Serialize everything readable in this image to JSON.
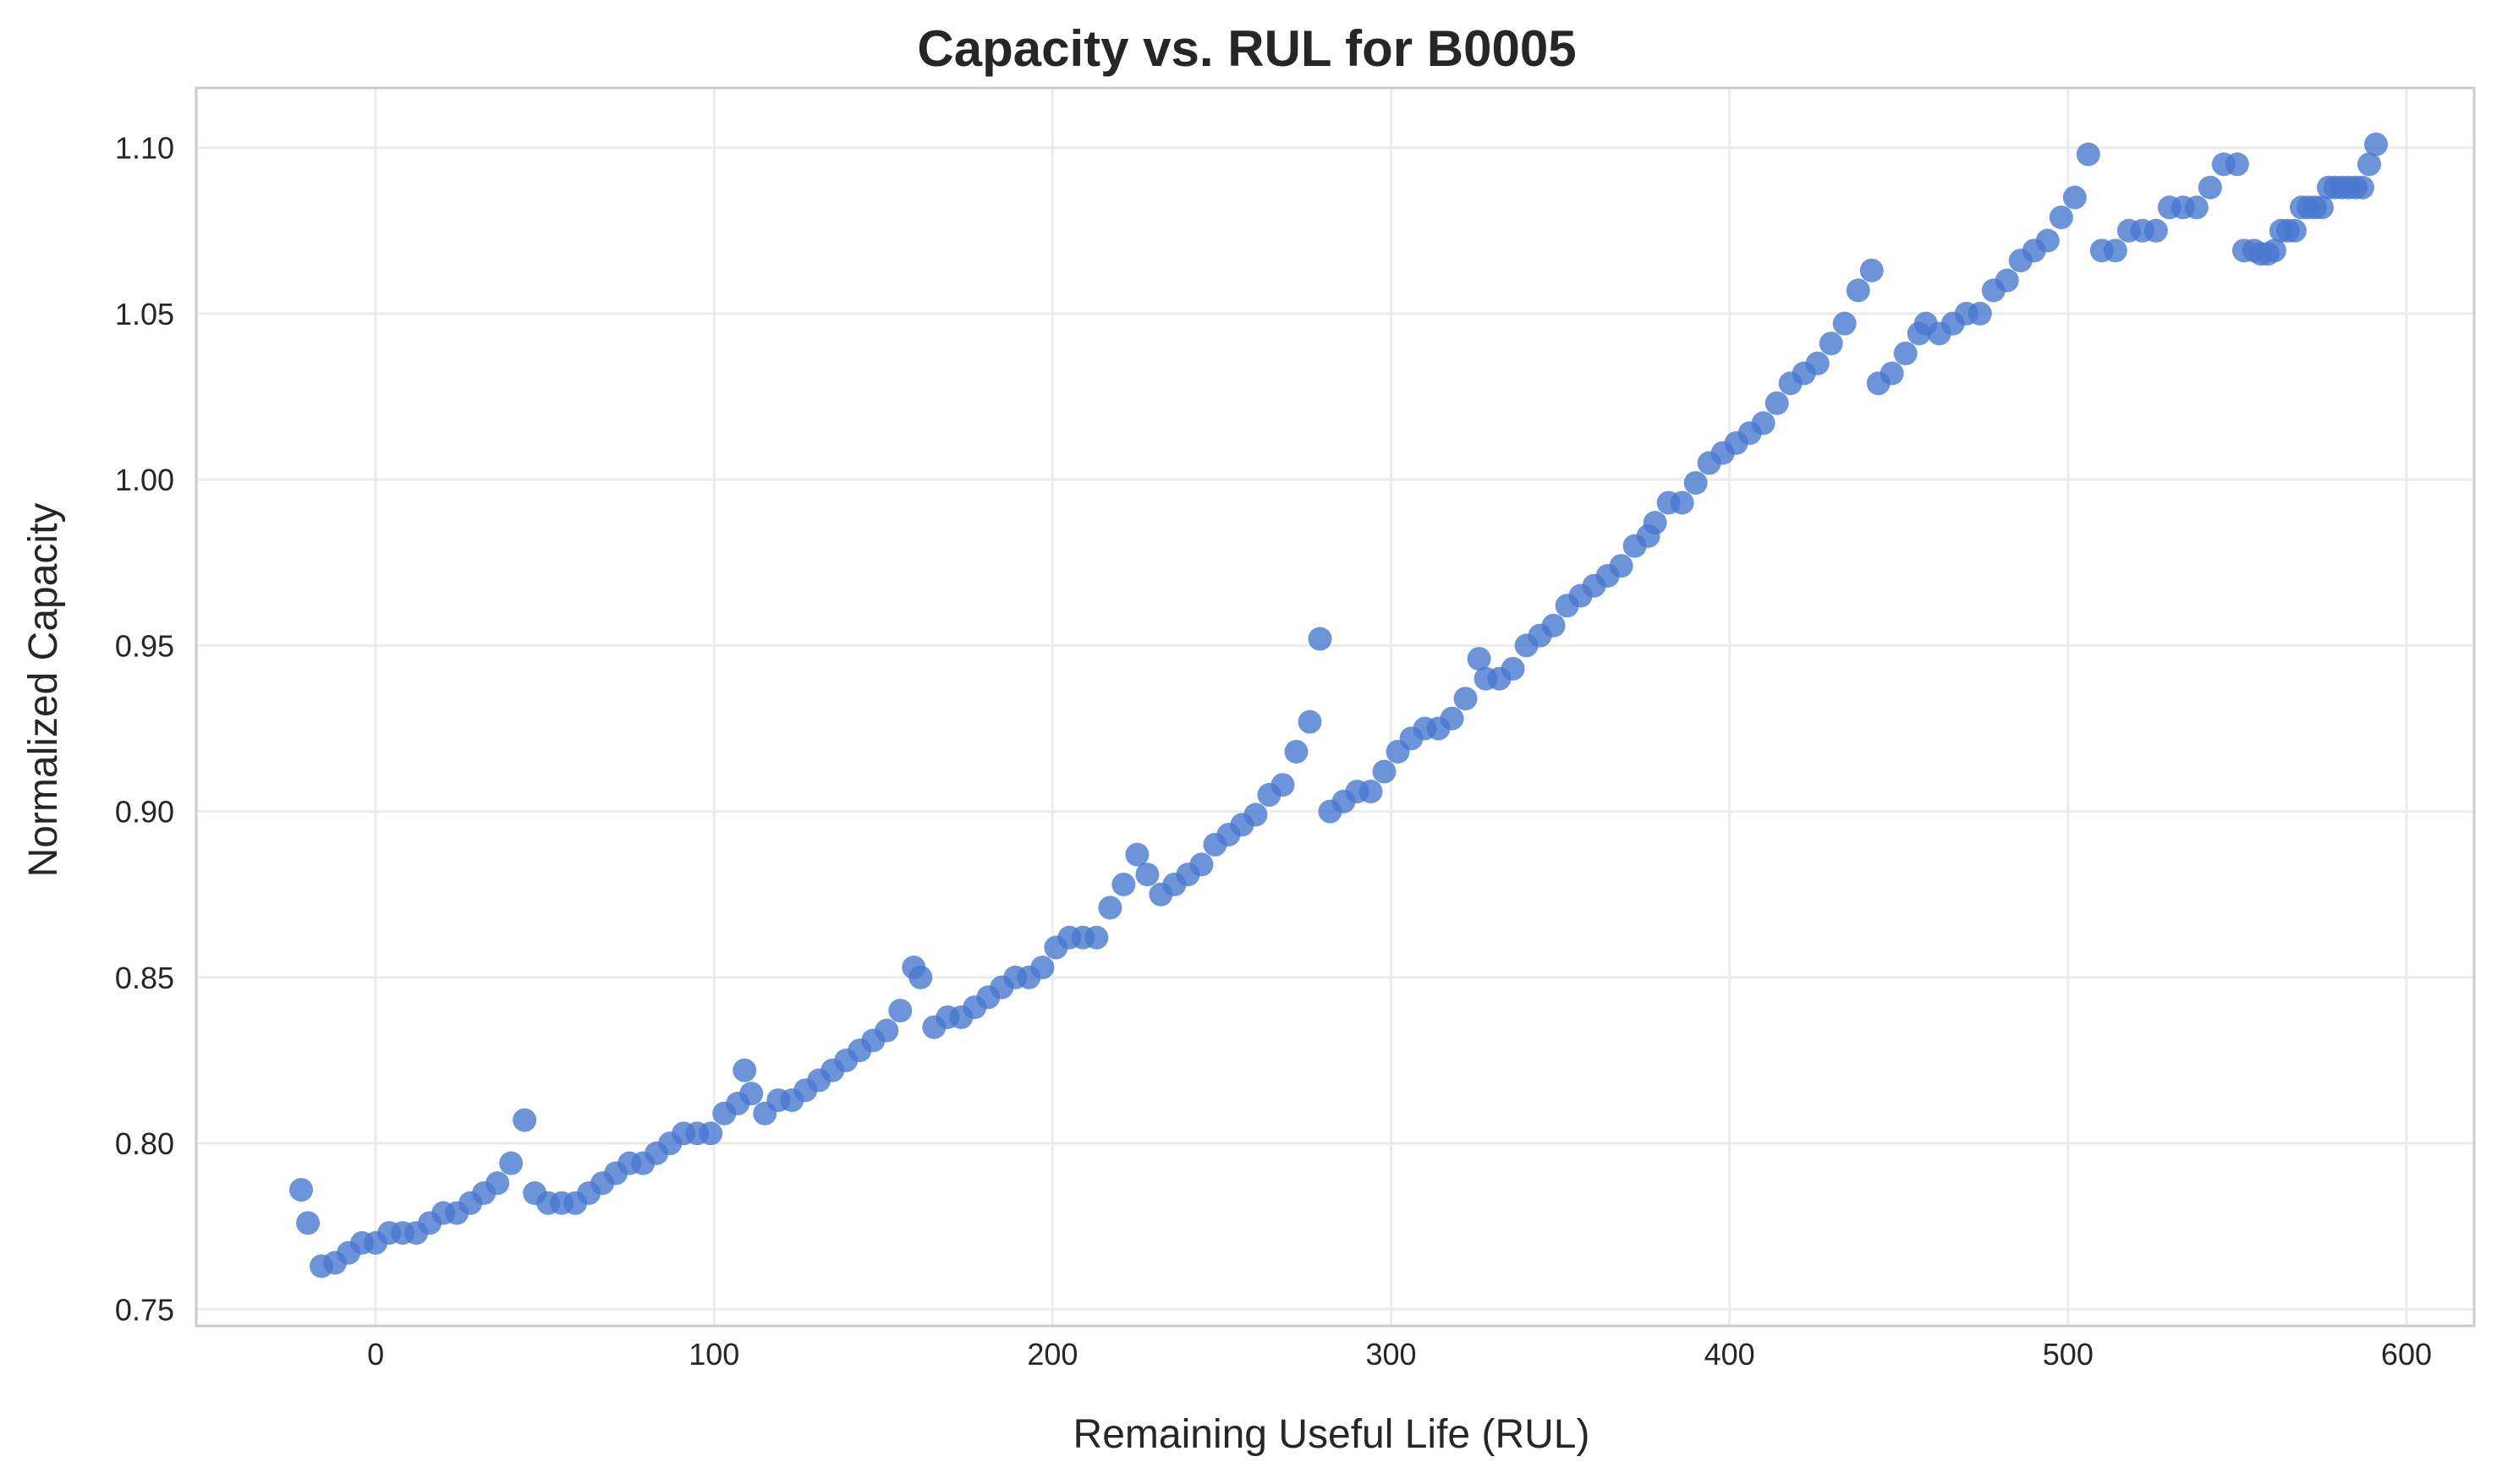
{
  "chart_data": {
    "type": "scatter",
    "title": "Capacity vs. RUL for B0005",
    "xlabel": "Remaining Useful Life (RUL)",
    "ylabel": "Normalized Capacity",
    "xlim": [
      -53,
      620
    ],
    "ylim": [
      0.745,
      1.118
    ],
    "xticks": [
      0,
      100,
      200,
      300,
      400,
      500,
      600
    ],
    "xtick_labels": [
      "0",
      "100",
      "200",
      "300",
      "400",
      "500",
      "600"
    ],
    "yticks": [
      0.75,
      0.8,
      0.85,
      0.9,
      0.95,
      1.0,
      1.05,
      1.1
    ],
    "ytick_labels": [
      "0.75",
      "0.80",
      "0.85",
      "0.90",
      "0.95",
      "1.00",
      "1.05",
      "1.10"
    ],
    "grid": true,
    "marker_color": "#4878d0",
    "x": [
      -22,
      -20,
      -16,
      -12,
      -8,
      -4,
      0,
      4,
      8,
      12,
      16,
      20,
      24,
      28,
      32,
      36,
      40,
      44,
      47,
      51,
      55,
      59,
      63,
      67,
      71,
      75,
      79,
      83,
      87,
      91,
      95,
      99,
      103,
      107,
      109,
      111,
      115,
      119,
      123,
      127,
      131,
      135,
      139,
      143,
      147,
      151,
      155,
      159,
      161,
      165,
      169,
      173,
      177,
      181,
      185,
      189,
      193,
      197,
      201,
      205,
      209,
      213,
      217,
      221,
      225,
      228,
      232,
      236,
      240,
      244,
      248,
      252,
      256,
      260,
      264,
      268,
      272,
      276,
      279,
      282,
      286,
      290,
      294,
      298,
      302,
      306,
      310,
      314,
      318,
      322,
      326,
      328,
      332,
      336,
      340,
      344,
      348,
      352,
      356,
      360,
      364,
      368,
      372,
      376,
      378,
      382,
      386,
      390,
      394,
      398,
      402,
      406,
      410,
      414,
      418,
      422,
      426,
      430,
      434,
      438,
      442,
      444,
      448,
      452,
      456,
      458,
      462,
      466,
      470,
      474,
      478,
      482,
      486,
      490,
      494,
      498,
      502,
      506,
      510,
      514,
      518,
      522,
      526,
      530,
      534,
      538,
      542,
      546,
      550,
      552,
      555,
      557,
      559,
      561,
      563,
      565,
      567,
      569,
      571,
      573,
      575,
      577,
      579,
      581,
      583,
      585,
      587,
      589,
      591
    ],
    "y": [
      0.786,
      0.776,
      0.763,
      0.764,
      0.767,
      0.77,
      0.77,
      0.773,
      0.773,
      0.773,
      0.776,
      0.779,
      0.779,
      0.782,
      0.785,
      0.788,
      0.794,
      0.807,
      0.785,
      0.782,
      0.782,
      0.782,
      0.785,
      0.788,
      0.791,
      0.794,
      0.794,
      0.797,
      0.8,
      0.803,
      0.803,
      0.803,
      0.809,
      0.812,
      0.822,
      0.815,
      0.809,
      0.813,
      0.813,
      0.816,
      0.819,
      0.822,
      0.825,
      0.828,
      0.831,
      0.834,
      0.84,
      0.853,
      0.85,
      0.835,
      0.838,
      0.838,
      0.841,
      0.844,
      0.847,
      0.85,
      0.85,
      0.853,
      0.859,
      0.862,
      0.862,
      0.862,
      0.871,
      0.878,
      0.887,
      0.881,
      0.875,
      0.878,
      0.881,
      0.884,
      0.89,
      0.893,
      0.896,
      0.899,
      0.905,
      0.908,
      0.918,
      0.927,
      0.952,
      0.9,
      0.903,
      0.906,
      0.906,
      0.912,
      0.918,
      0.922,
      0.925,
      0.925,
      0.928,
      0.934,
      0.946,
      0.94,
      0.94,
      0.943,
      0.95,
      0.953,
      0.956,
      0.962,
      0.965,
      0.968,
      0.971,
      0.974,
      0.98,
      0.983,
      0.987,
      0.993,
      0.993,
      0.999,
      1.005,
      1.008,
      1.011,
      1.014,
      1.017,
      1.023,
      1.029,
      1.032,
      1.035,
      1.041,
      1.047,
      1.057,
      1.063,
      1.029,
      1.032,
      1.038,
      1.044,
      1.047,
      1.044,
      1.047,
      1.05,
      1.05,
      1.057,
      1.06,
      1.066,
      1.069,
      1.072,
      1.079,
      1.085,
      1.098,
      1.069,
      1.069,
      1.075,
      1.075,
      1.075,
      1.082,
      1.082,
      1.082,
      1.088,
      1.095,
      1.095,
      1.069,
      1.069,
      1.068,
      1.068,
      1.069,
      1.075,
      1.075,
      1.075,
      1.082,
      1.082,
      1.082,
      1.082,
      1.088,
      1.088,
      1.088,
      1.088,
      1.088,
      1.088,
      1.095,
      1.101
    ]
  }
}
